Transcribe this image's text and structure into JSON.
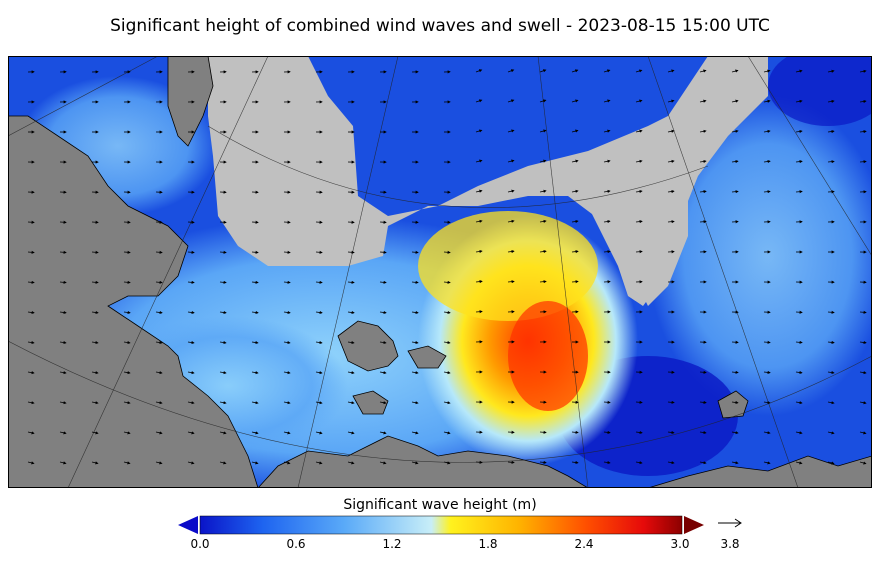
{
  "title": "Significant height of combined wind waves and swell - 2023-08-15 15:00 UTC",
  "colorbar": {
    "title": "Significant wave height (m)",
    "ticks": [
      "0.0",
      "0.6",
      "1.2",
      "1.8",
      "2.4",
      "3.0"
    ],
    "min": 0.0,
    "max": 3.0,
    "colors": [
      "#0a14c8",
      "#1e64f0",
      "#5aaaf8",
      "#b4e6fa",
      "#fff21e",
      "#ffb400",
      "#ff5000",
      "#e60a0a",
      "#8c0000"
    ]
  },
  "reference_arrow": {
    "label": "3.8"
  },
  "map": {
    "land_color": "#808080",
    "ice_color": "#c0c0c0",
    "sea_low": "#1240dc",
    "sea_mid": "#64b8f8",
    "sea_high": "#ff4a00"
  }
}
